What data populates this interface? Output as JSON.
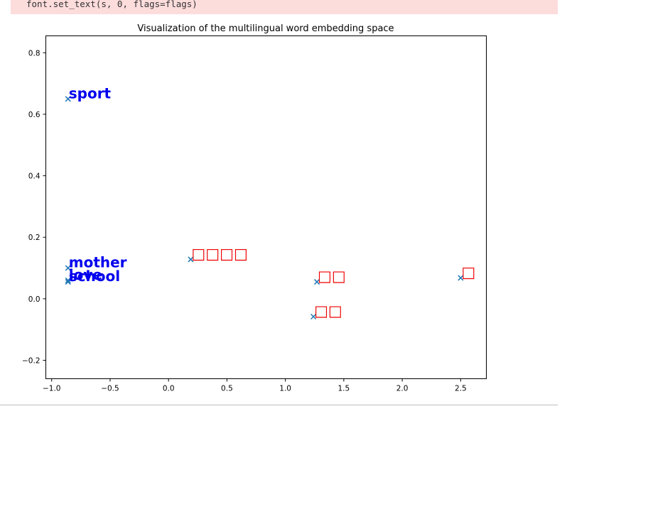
{
  "stderr": {
    "code_line": "font.set_text(s, 0, flags=flags)"
  },
  "colors": {
    "stderr_background": "#fddcdc",
    "marker": "#1f77b4",
    "english_labels": "#0000ee",
    "foreign_labels": "#ee0000"
  },
  "chart_data": {
    "type": "scatter",
    "title": "Visualization of the multilingual word embedding space",
    "xlabel": "",
    "ylabel": "",
    "xlim": [
      -1.05,
      2.72
    ],
    "ylim": [
      -0.26,
      0.855
    ],
    "xticks": [
      "−1.0",
      "−0.5",
      "0.0",
      "0.5",
      "1.0",
      "1.5",
      "2.0",
      "2.5"
    ],
    "xtick_values": [
      -1.0,
      -0.5,
      0.0,
      0.5,
      1.0,
      1.5,
      2.0,
      2.5
    ],
    "yticks": [
      "−0.2",
      "0.0",
      "0.2",
      "0.4",
      "0.6",
      "0.8"
    ],
    "ytick_values": [
      -0.2,
      0.0,
      0.2,
      0.4,
      0.6,
      0.8
    ],
    "grid": false,
    "marker": "x",
    "points": [
      {
        "label": "sport",
        "x": -0.86,
        "y": 0.65,
        "group": "english"
      },
      {
        "label": "mother",
        "x": -0.86,
        "y": 0.1,
        "group": "english"
      },
      {
        "label": "love",
        "x": -0.86,
        "y": 0.06,
        "group": "english"
      },
      {
        "label": "school",
        "x": -0.86,
        "y": 0.055,
        "group": "english"
      },
      {
        "label": "□□□□",
        "x": 0.19,
        "y": 0.128,
        "group": "foreign"
      },
      {
        "label": "□□",
        "x": 1.27,
        "y": 0.055,
        "group": "foreign"
      },
      {
        "label": "□□",
        "x": 1.24,
        "y": -0.058,
        "group": "foreign"
      },
      {
        "label": "□",
        "x": 2.5,
        "y": 0.068,
        "group": "foreign"
      }
    ]
  }
}
